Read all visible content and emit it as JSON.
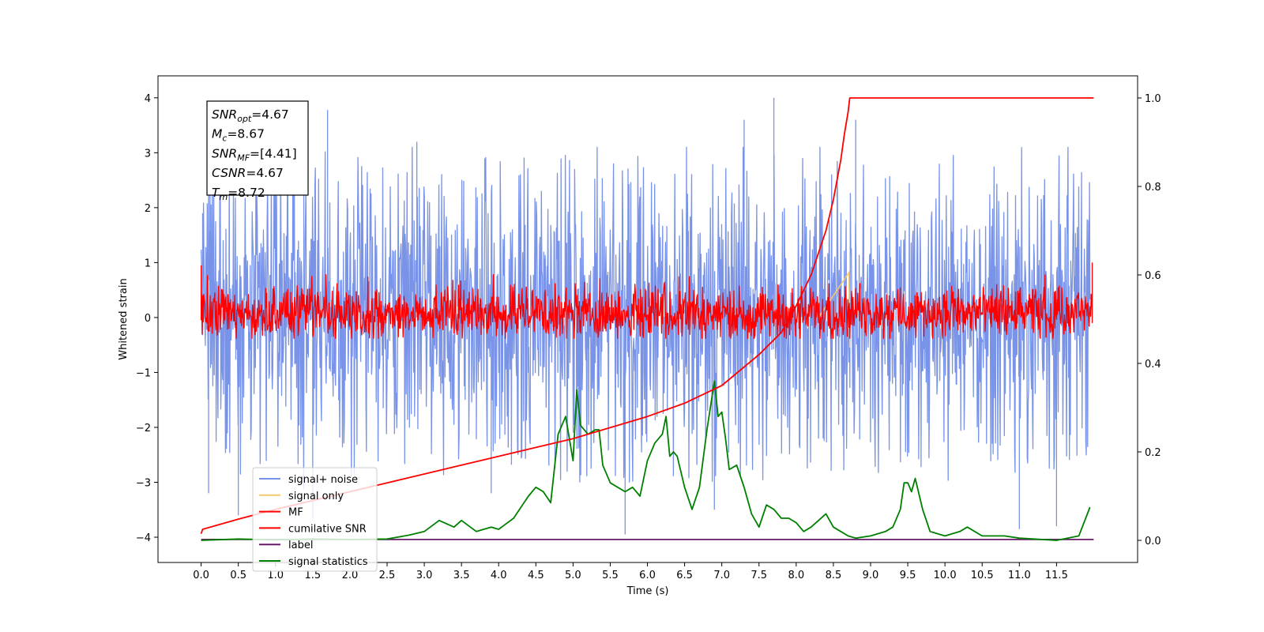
{
  "chart_data": {
    "type": "line",
    "xlabel": "Time (s)",
    "ylabel": "Whitened strain",
    "xlim": [
      -0.58,
      12.59
    ],
    "ylim": [
      -4.46,
      4.4
    ],
    "y2lim": [
      -0.05,
      1.05
    ],
    "xticks": [
      "0.0",
      "0.5",
      "1.0",
      "1.5",
      "2.0",
      "2.5",
      "3.0",
      "3.5",
      "4.0",
      "4.5",
      "5.0",
      "5.5",
      "6.0",
      "6.5",
      "7.0",
      "7.5",
      "8.0",
      "8.5",
      "9.0",
      "9.5",
      "10.0",
      "10.5",
      "11.0",
      "11.5"
    ],
    "yticks": [
      "4",
      "3",
      "2",
      "1",
      "0",
      "−1",
      "−2",
      "−3",
      "−4"
    ],
    "y2ticks": [
      "1.0",
      "0.8",
      "0.6",
      "0.4",
      "0.2",
      "0.0"
    ],
    "grid": false,
    "legend_position": "lower-left",
    "annotation": {
      "lines": [
        {
          "name": "SNR",
          "sub": "opt",
          "value": "=4.67"
        },
        {
          "name": "M",
          "sub": "c",
          "value": "=8.67"
        },
        {
          "name": "SNR",
          "sub": "MF",
          "value": "=[4.41]"
        },
        {
          "name": "CSNR",
          "sub": "",
          "value": "=4.67"
        },
        {
          "name": "T",
          "sub": "m",
          "value": "=8.72"
        }
      ]
    },
    "series": [
      {
        "name": "signal+ noise",
        "color": "#7893e8",
        "axis": "left",
        "band": [
          -1.2,
          1.5
        ],
        "peaks": [
          [
            0.02,
            1.9
          ],
          [
            0.12,
            2.4
          ],
          [
            1.38,
            3.78
          ],
          [
            1.7,
            3.78
          ],
          [
            2.9,
            3.2
          ],
          [
            7.3,
            3.6
          ],
          [
            7.7,
            4.0
          ],
          [
            8.8,
            3.6
          ],
          [
            0.1,
            -3.2
          ],
          [
            0.5,
            -3.6
          ],
          [
            1.5,
            -3.65
          ],
          [
            3.9,
            -3.2
          ],
          [
            5.7,
            -3.95
          ],
          [
            6.9,
            -3.5
          ],
          [
            11.0,
            -3.85
          ],
          [
            11.5,
            -3.8
          ]
        ]
      },
      {
        "name": "signal only",
        "color": "#f5c96f",
        "axis": "left",
        "x": [
          8.3,
          8.71,
          8.72
        ],
        "y": [
          0.0,
          0.82,
          -0.55
        ]
      },
      {
        "name": "MF",
        "color": "#ff0000",
        "axis": "left",
        "band": [
          -0.2,
          0.45
        ]
      },
      {
        "name": "cumilative SNR",
        "color": "#ff0000",
        "axis": "right",
        "x": [
          0.0,
          0.02,
          0.5,
          1.0,
          1.5,
          2.0,
          2.5,
          3.0,
          3.5,
          4.0,
          4.5,
          5.0,
          5.5,
          6.0,
          6.5,
          7.0,
          7.5,
          7.8,
          8.0,
          8.2,
          8.4,
          8.5,
          8.6,
          8.65,
          8.7,
          8.72,
          12.0
        ],
        "y": [
          0.015,
          0.025,
          0.048,
          0.07,
          0.09,
          0.11,
          0.13,
          0.15,
          0.17,
          0.19,
          0.21,
          0.23,
          0.255,
          0.28,
          0.31,
          0.35,
          0.42,
          0.47,
          0.53,
          0.6,
          0.7,
          0.77,
          0.86,
          0.92,
          0.97,
          1.0,
          1.0
        ]
      },
      {
        "name": "label",
        "color": "#6a1a6a",
        "axis": "right",
        "x": [
          0.0,
          12.0
        ],
        "y": [
          0.002,
          0.002
        ]
      },
      {
        "name": "signal statistics",
        "color": "#008000",
        "axis": "right",
        "x": [
          0.0,
          0.5,
          1.0,
          1.5,
          2.0,
          2.5,
          2.8,
          3.0,
          3.2,
          3.4,
          3.5,
          3.7,
          3.9,
          4.0,
          4.2,
          4.4,
          4.5,
          4.6,
          4.7,
          4.8,
          4.9,
          5.0,
          5.05,
          5.1,
          5.2,
          5.3,
          5.35,
          5.4,
          5.5,
          5.6,
          5.7,
          5.8,
          5.9,
          6.0,
          6.1,
          6.2,
          6.25,
          6.3,
          6.35,
          6.4,
          6.5,
          6.6,
          6.7,
          6.8,
          6.9,
          6.95,
          7.0,
          7.05,
          7.1,
          7.2,
          7.3,
          7.4,
          7.5,
          7.6,
          7.7,
          7.8,
          7.9,
          8.0,
          8.1,
          8.2,
          8.4,
          8.5,
          8.6,
          8.7,
          8.8,
          9.0,
          9.2,
          9.3,
          9.4,
          9.45,
          9.5,
          9.55,
          9.6,
          9.7,
          9.8,
          10.0,
          10.2,
          10.3,
          10.5,
          10.8,
          11.0,
          11.5,
          11.8,
          11.95
        ],
        "y": [
          0.0,
          0.003,
          0.001,
          0.003,
          0.002,
          0.003,
          0.012,
          0.02,
          0.045,
          0.03,
          0.045,
          0.02,
          0.03,
          0.025,
          0.05,
          0.1,
          0.12,
          0.11,
          0.085,
          0.24,
          0.28,
          0.18,
          0.34,
          0.26,
          0.24,
          0.25,
          0.25,
          0.17,
          0.13,
          0.12,
          0.11,
          0.12,
          0.1,
          0.18,
          0.22,
          0.24,
          0.28,
          0.19,
          0.2,
          0.19,
          0.12,
          0.07,
          0.12,
          0.25,
          0.36,
          0.28,
          0.29,
          0.23,
          0.16,
          0.17,
          0.12,
          0.06,
          0.03,
          0.08,
          0.07,
          0.05,
          0.05,
          0.04,
          0.02,
          0.03,
          0.06,
          0.03,
          0.02,
          0.01,
          0.005,
          0.01,
          0.02,
          0.03,
          0.07,
          0.13,
          0.13,
          0.11,
          0.14,
          0.07,
          0.02,
          0.01,
          0.02,
          0.03,
          0.01,
          0.01,
          0.005,
          0.0,
          0.01,
          0.075
        ]
      }
    ]
  }
}
